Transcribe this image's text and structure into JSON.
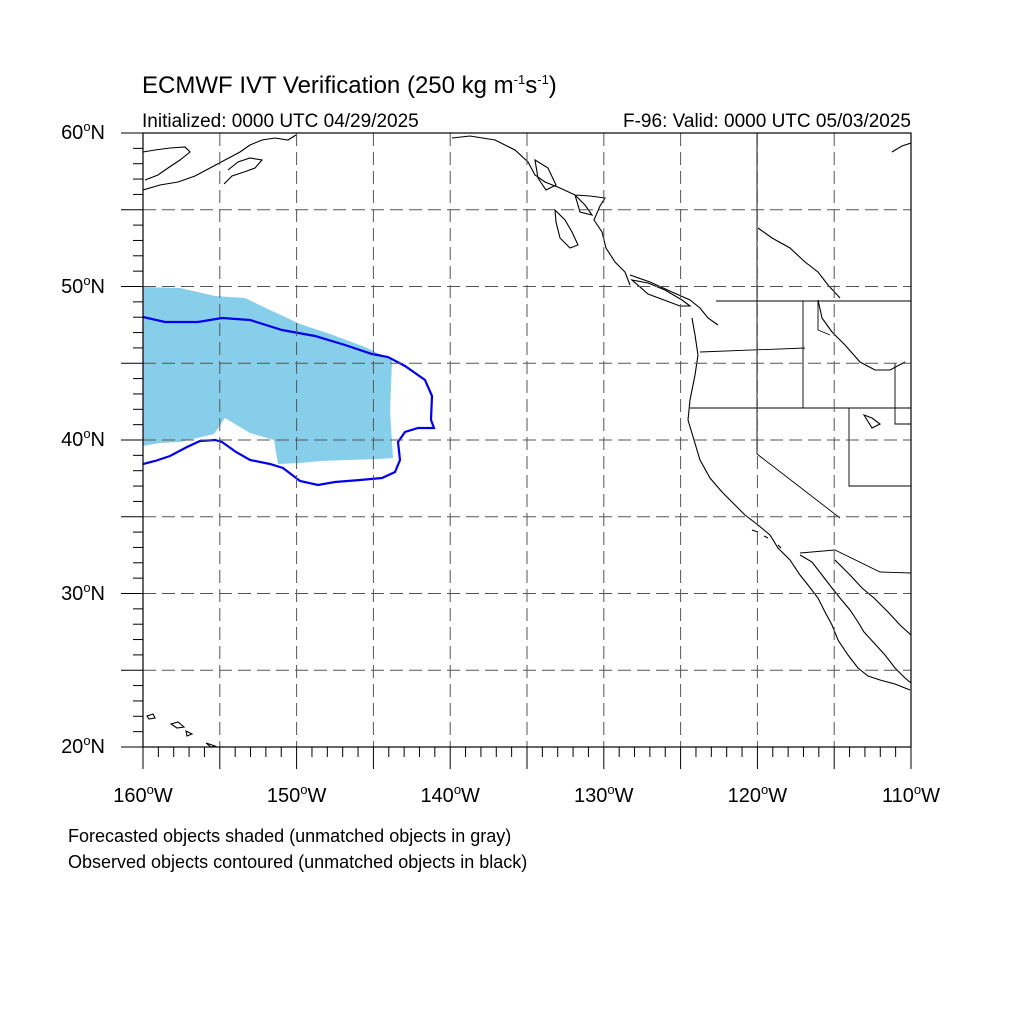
{
  "header": {
    "title_main": "ECMWF IVT Verification (250 kg m",
    "title_sup1": "-1",
    "title_mid": "s",
    "title_sup2": "-1",
    "title_end": ")",
    "initialized": "Initialized: 0000 UTC 04/29/2025",
    "valid": "F-96: Valid: 0000 UTC 05/03/2025"
  },
  "map": {
    "lon_range": [
      -160,
      -110
    ],
    "lat_range": [
      20,
      60
    ],
    "grid_style": "dashed",
    "lat_labels": [
      {
        "lat": 60,
        "num": "60",
        "suffix": "N"
      },
      {
        "lat": 50,
        "num": "50",
        "suffix": "N"
      },
      {
        "lat": 40,
        "num": "40",
        "suffix": "N"
      },
      {
        "lat": 30,
        "num": "30",
        "suffix": "N"
      },
      {
        "lat": 20,
        "num": "20",
        "suffix": "N"
      }
    ],
    "lon_labels": [
      {
        "lon": -160,
        "num": "160",
        "suffix": "W"
      },
      {
        "lon": -150,
        "num": "150",
        "suffix": "W"
      },
      {
        "lon": -140,
        "num": "140",
        "suffix": "W"
      },
      {
        "lon": -130,
        "num": "130",
        "suffix": "W"
      },
      {
        "lon": -120,
        "num": "120",
        "suffix": "W"
      },
      {
        "lon": -110,
        "num": "110",
        "suffix": "W"
      }
    ],
    "colors": {
      "forecast_fill": "#87ceea",
      "observed_contour": "#0000ee",
      "coastline": "#000000",
      "grid": "#555555"
    }
  },
  "notes": {
    "line1": "Forecasted objects shaded (unmatched objects in gray)",
    "line2": "Observed objects contoured (unmatched objects in black)"
  }
}
